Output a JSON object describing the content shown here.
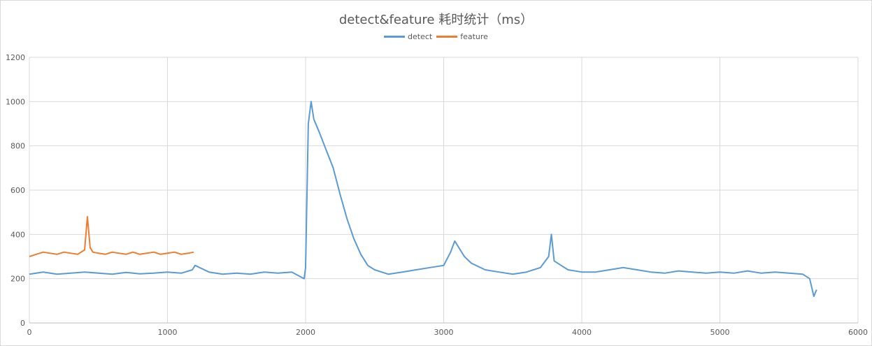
{
  "chart_data": {
    "type": "line",
    "title": "detect&feature 耗时统计（ms）",
    "xlabel": "",
    "ylabel": "",
    "xlim": [
      0,
      6000
    ],
    "ylim": [
      0,
      1200
    ],
    "xticks": [
      0,
      1000,
      2000,
      3000,
      4000,
      5000,
      6000
    ],
    "yticks": [
      0,
      200,
      400,
      600,
      800,
      1000,
      1200
    ],
    "grid": true,
    "legend": "top-center",
    "series": [
      {
        "name": "detect",
        "color": "#5b9bd5",
        "x": [
          0,
          100,
          200,
          300,
          400,
          500,
          600,
          700,
          800,
          900,
          1000,
          1100,
          1180,
          1200,
          1300,
          1400,
          1500,
          1600,
          1700,
          1800,
          1900,
          1990,
          2000,
          2020,
          2040,
          2060,
          2100,
          2150,
          2200,
          2250,
          2300,
          2350,
          2400,
          2450,
          2500,
          2600,
          2700,
          2800,
          2900,
          3000,
          3050,
          3080,
          3150,
          3200,
          3300,
          3400,
          3500,
          3600,
          3700,
          3760,
          3780,
          3800,
          3850,
          3900,
          4000,
          4100,
          4200,
          4300,
          4400,
          4500,
          4600,
          4700,
          4800,
          4900,
          5000,
          5100,
          5200,
          5300,
          5400,
          5500,
          5600,
          5650,
          5680,
          5700
        ],
        "y": [
          220,
          230,
          220,
          225,
          230,
          225,
          220,
          228,
          222,
          225,
          230,
          225,
          240,
          260,
          230,
          220,
          225,
          220,
          230,
          225,
          230,
          200,
          250,
          900,
          1000,
          920,
          860,
          780,
          700,
          580,
          470,
          380,
          310,
          260,
          240,
          220,
          230,
          240,
          250,
          260,
          320,
          370,
          300,
          270,
          240,
          230,
          220,
          230,
          250,
          300,
          400,
          280,
          260,
          240,
          230,
          230,
          240,
          250,
          240,
          230,
          225,
          235,
          230,
          225,
          230,
          225,
          235,
          225,
          230,
          225,
          220,
          200,
          120,
          150
        ]
      },
      {
        "name": "feature",
        "color": "#ed7d31",
        "x": [
          0,
          50,
          100,
          150,
          200,
          250,
          300,
          350,
          400,
          420,
          440,
          460,
          500,
          550,
          600,
          650,
          700,
          750,
          800,
          850,
          900,
          950,
          1000,
          1050,
          1100,
          1150,
          1190
        ],
        "y": [
          300,
          310,
          320,
          315,
          310,
          320,
          315,
          310,
          330,
          480,
          340,
          320,
          315,
          310,
          320,
          315,
          310,
          320,
          310,
          315,
          320,
          310,
          315,
          320,
          310,
          315,
          320
        ]
      }
    ]
  }
}
